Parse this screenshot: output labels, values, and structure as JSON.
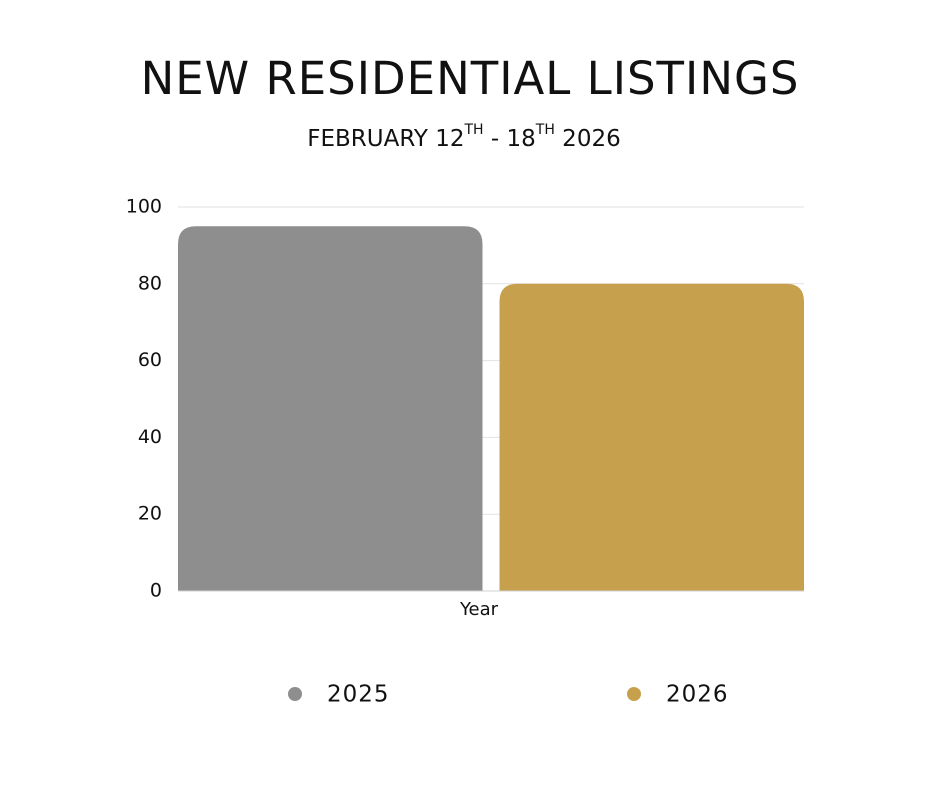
{
  "chart_data": {
    "type": "bar",
    "title": "NEW RESIDENTIAL LISTINGS",
    "subtitle": "FEBRUARY 12TH - 18TH 2026",
    "categories": [
      "Year"
    ],
    "series": [
      {
        "name": "2025",
        "color": "#8e8e8e",
        "values": [
          95
        ]
      },
      {
        "name": "2026",
        "color": "#c6a04c",
        "values": [
          80
        ]
      }
    ],
    "ylim": [
      0,
      100
    ],
    "yticks": [
      0,
      20,
      40,
      60,
      80,
      100
    ],
    "grid": true,
    "legend": "bottom"
  }
}
